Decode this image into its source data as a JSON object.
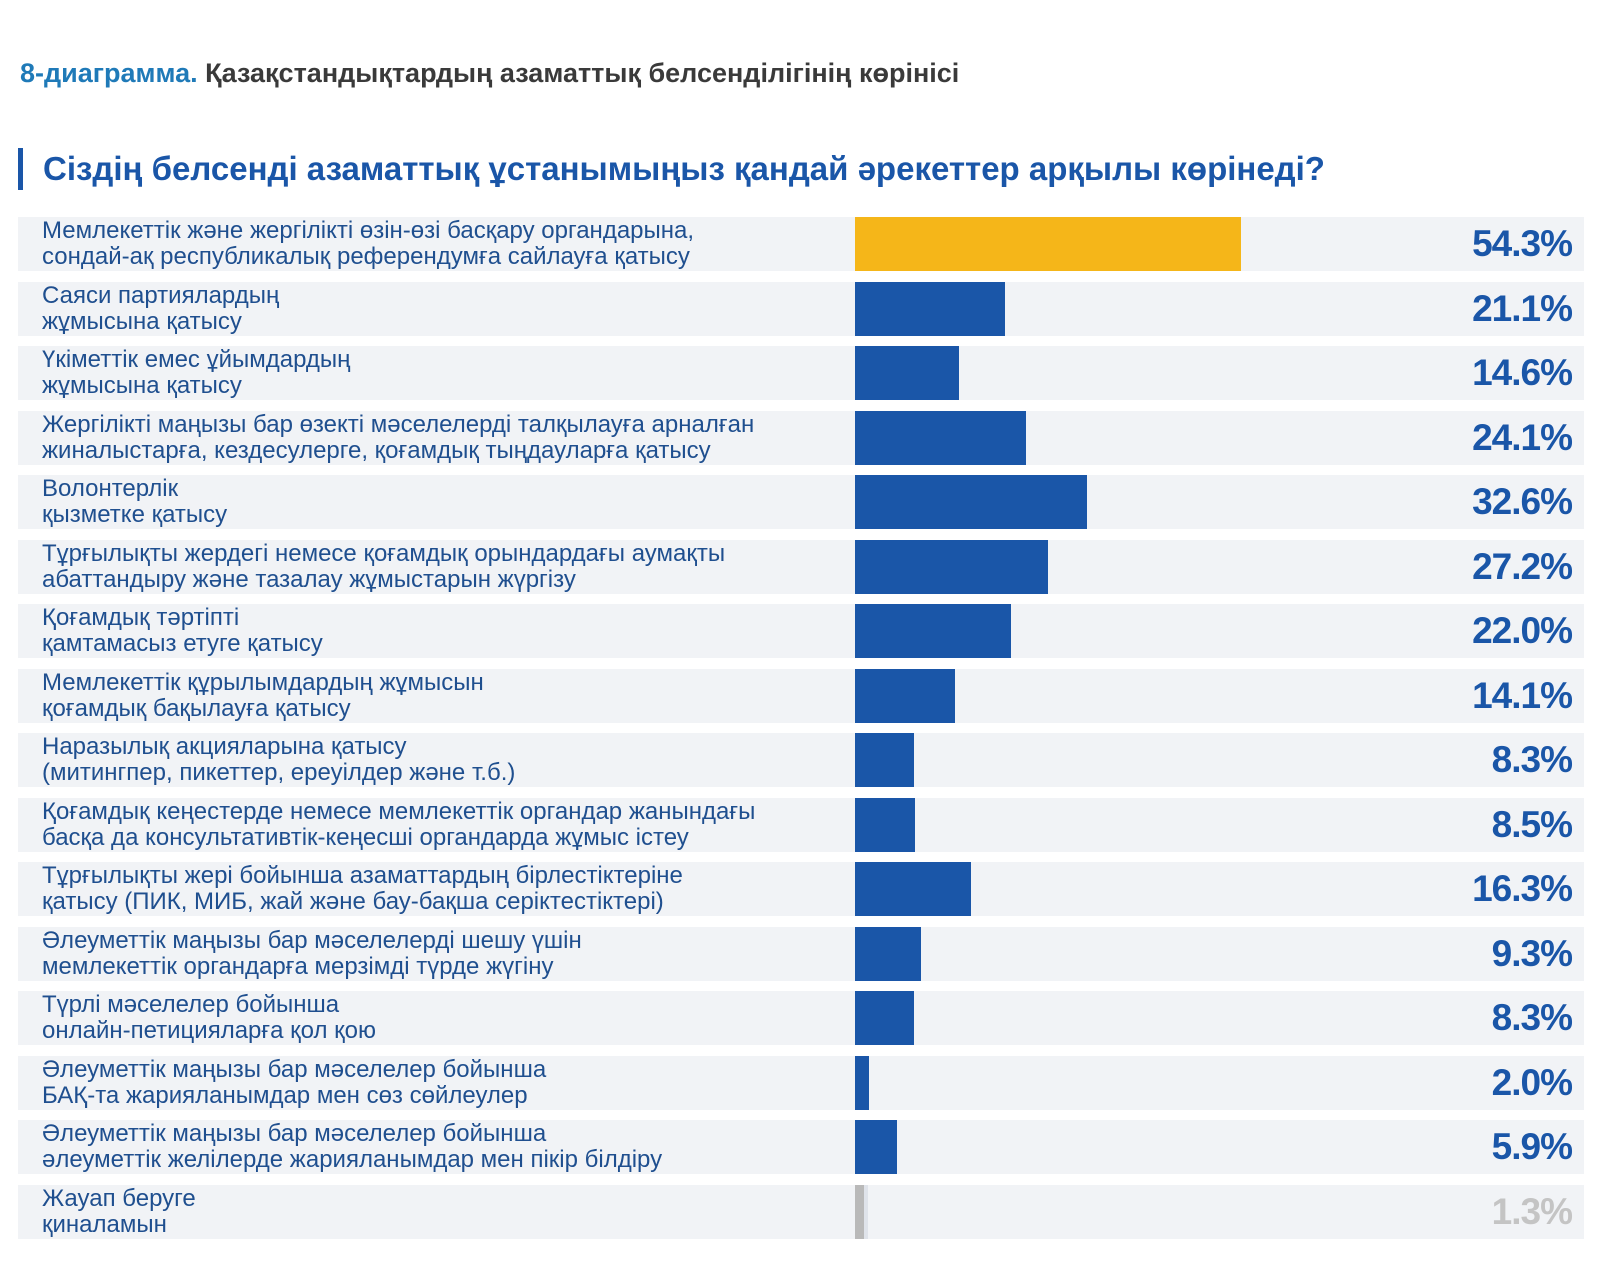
{
  "figure": {
    "number": "8-диаграмма.",
    "title": "Қазақстандықтардың азаматтық белсенділігінің көрінісі"
  },
  "colors": {
    "highlight": "#f5b619",
    "primary": "#1a56a8",
    "muted": "#b9b9b9",
    "row_bg": "#f1f3f6"
  },
  "chart_data": {
    "type": "bar",
    "orientation": "horizontal",
    "title": "Сіздің белсенді азаматтық ұстанымыңыз қандай әрекеттер арқылы көрінеді?",
    "xlim": [
      0,
      100
    ],
    "categories": [
      "Мемлекеттік және жергілікті өзін-өзі басқару органдарына,\nсондай-ақ республикалық референдумға сайлауға қатысу",
      "Саяси партиялардың\nжұмысына қатысу",
      "Үкіметтік емес ұйымдардың\nжұмысына қатысу",
      "Жергілікті маңызы бар өзекті мәселелерді талқылауға арналған\nжиналыстарға, кездесулерге, қоғамдық тыңдауларға қатысу",
      "Волонтерлік\nқызметке қатысу",
      "Тұрғылықты жердегі немесе қоғамдық орындардағы аумақты\nабаттандыру және тазалау жұмыстарын жүргізу",
      "Қоғамдық тәртіпті\nқамтамасыз етуге қатысу",
      "Мемлекеттік құрылымдардың жұмысын\nқоғамдық бақылауға қатысу",
      "Наразылық акцияларына қатысу\n(митингпер, пикеттер, ереуілдер және т.б.)",
      "Қоғамдық кеңестерде немесе мемлекеттік органдар жанындағы\nбасқа да консультативтік-кеңесші органдарда жұмыс істеу",
      "Тұрғылықты жері бойынша азаматтардың бірлестіктеріне\nқатысу (ПИК, МИБ, жай және бау-бақша серіктестіктері)",
      "Әлеуметтік маңызы бар мәселелерді шешу үшін\nмемлекеттік органдарға мерзімді түрде жүгіну",
      "Түрлі мәселелер бойынша\nонлайн-петицияларға қол қою",
      "Әлеуметтік маңызы бар мәселелер бойынша\nБАҚ-та жарияланымдар мен сөз сөйлеулер",
      "Әлеуметтік маңызы бар мәселелер бойынша\nәлеуметтік желілерде жарияланымдар мен пікір білдіру",
      "Жауап беруге\nқиналамын"
    ],
    "values": [
      54.3,
      21.1,
      14.6,
      24.1,
      32.6,
      27.2,
      22.0,
      14.1,
      8.3,
      8.5,
      16.3,
      9.3,
      8.3,
      2.0,
      5.9,
      1.3
    ],
    "value_labels": [
      "54.3%",
      "21.1%",
      "14.6%",
      "24.1%",
      "32.6%",
      "27.2%",
      "22.0%",
      "14.1%",
      "8.3%",
      "8.5%",
      "16.3%",
      "9.3%",
      "8.3%",
      "2.0%",
      "5.9%",
      "1.3%"
    ],
    "bar_colors": [
      "#f5b619",
      "#1a56a8",
      "#1a56a8",
      "#1a56a8",
      "#1a56a8",
      "#1a56a8",
      "#1a56a8",
      "#1a56a8",
      "#1a56a8",
      "#1a56a8",
      "#1a56a8",
      "#1a56a8",
      "#1a56a8",
      "#1a56a8",
      "#1a56a8",
      "#b9b9b9"
    ]
  }
}
